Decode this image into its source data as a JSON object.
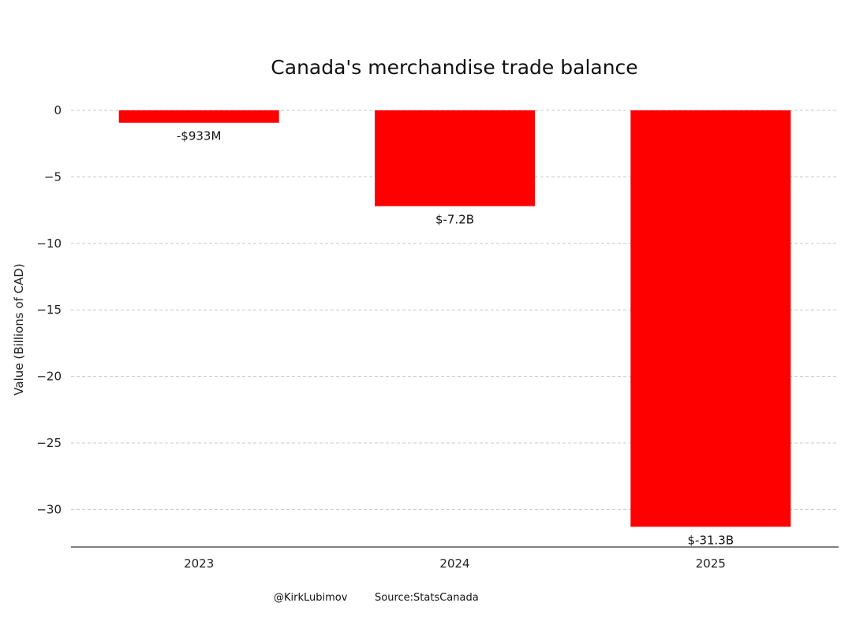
{
  "chart_data": {
    "type": "bar",
    "title": "Canada's merchandise trade balance",
    "xlabel": "",
    "ylabel": "Value (Billions of CAD)",
    "categories": [
      "2023",
      "2024",
      "2025"
    ],
    "values": [
      -0.933,
      -7.2,
      -31.3
    ],
    "data_labels": [
      "-$933M",
      "$-7.2B",
      "$-31.3B"
    ],
    "ylim": [
      -32.8,
      0.8
    ],
    "yticks": [
      0,
      -5,
      -10,
      -15,
      -20,
      -25,
      -30
    ],
    "ytick_labels": [
      "0",
      "−5",
      "−10",
      "−15",
      "−20",
      "−25",
      "−30"
    ],
    "grid": "horizontal dashed",
    "bar_color": "#ff0000"
  },
  "footer": {
    "author": "@KirkLubimov",
    "source": "Source:StatsCanada"
  }
}
